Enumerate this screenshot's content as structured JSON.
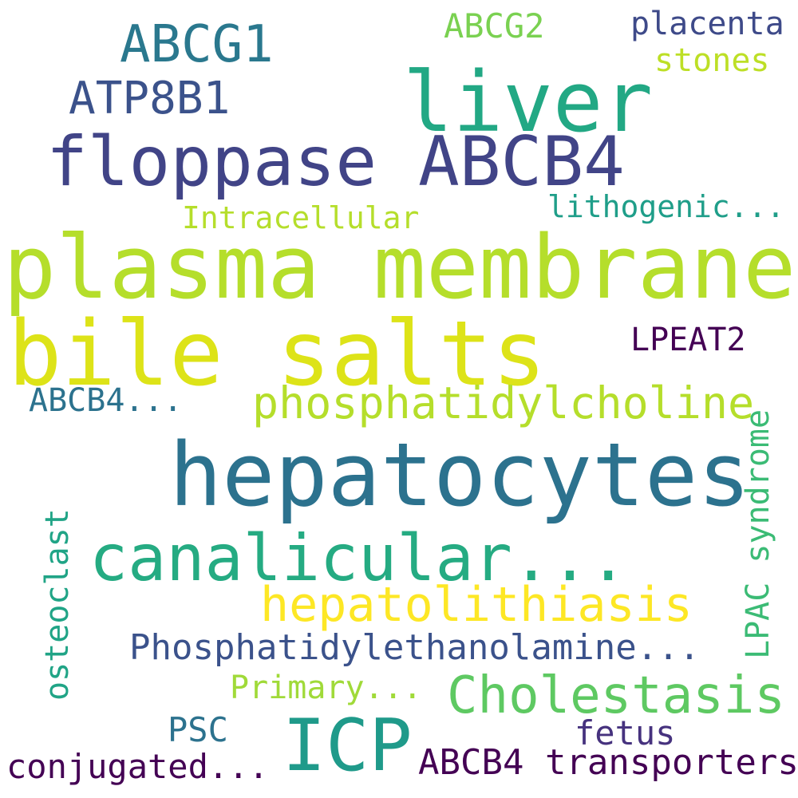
{
  "words": {
    "abcg1": {
      "text": "ABCG1",
      "color": "#2a788e"
    },
    "abcg2": {
      "text": "ABCG2",
      "color": "#7ad151"
    },
    "placenta": {
      "text": "placenta",
      "color": "#3e4a89"
    },
    "stones": {
      "text": "stones",
      "color": "#bddf26"
    },
    "liver": {
      "text": "liver",
      "color": "#22a884"
    },
    "atp8b1": {
      "text": "ATP8B1",
      "color": "#3b528b"
    },
    "floppase": {
      "text": "floppase ABCB4",
      "color": "#414487"
    },
    "intracellular": {
      "text": "Intracellular",
      "color": "#b5de2b"
    },
    "lithogenic": {
      "text": "lithogenic...",
      "color": "#1f9e89"
    },
    "plasma_membrane": {
      "text": "plasma membrane",
      "color": "#b5de2b"
    },
    "bile_salts": {
      "text": "bile salts",
      "color": "#dde318"
    },
    "lpeat2": {
      "text": "LPEAT2",
      "color": "#440154"
    },
    "abcb4_ellipsis": {
      "text": "ABCB4...",
      "color": "#2c728e"
    },
    "phosphatidylcholine": {
      "text": "phosphatidylcholine",
      "color": "#b5de2b"
    },
    "lpac_syndrome": {
      "text": "LPAC syndrome",
      "color": "#3bbb75"
    },
    "hepatocytes": {
      "text": "hepatocytes",
      "color": "#2c728e"
    },
    "osteoclast": {
      "text": "osteoclast",
      "color": "#20a486"
    },
    "canalicular": {
      "text": "canalicular...",
      "color": "#25ab82"
    },
    "hepatolithiasis": {
      "text": "hepatolithiasis",
      "color": "#fde725"
    },
    "phosphatidylethanolamine": {
      "text": "Phosphatidylethanolamine...",
      "color": "#3b528b"
    },
    "primary": {
      "text": "Primary...",
      "color": "#a0da39"
    },
    "cholestasis": {
      "text": "Cholestasis",
      "color": "#5ec962"
    },
    "psc": {
      "text": "PSC",
      "color": "#2c728e"
    },
    "icp": {
      "text": "ICP",
      "color": "#1f9a8a"
    },
    "fetus": {
      "text": "fetus",
      "color": "#46327e"
    },
    "conjugated": {
      "text": "conjugated...",
      "color": "#440154"
    },
    "abcb4_transporters": {
      "text": "ABCB4 transporters",
      "color": "#440154"
    }
  }
}
